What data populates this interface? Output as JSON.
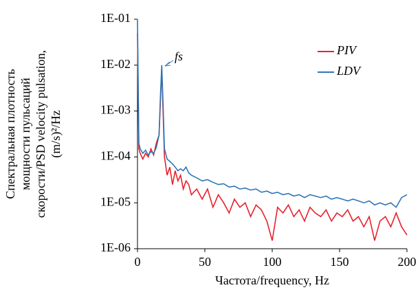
{
  "chart_data": {
    "type": "line",
    "x_label": "Частота/frequency, Hz",
    "y_label": [
      "Спектральная плотность",
      "мощности пульсаций",
      "скорости/PSD velocity pulsation,",
      "(m/s)²/Hz"
    ],
    "annotation": "fs",
    "log_y": true,
    "grid": false,
    "legend": "upper right",
    "xlim": [
      0,
      200
    ],
    "xticks": [
      0,
      50,
      100,
      150,
      200
    ],
    "ylim": [
      1e-06,
      0.1
    ],
    "yticks": [
      {
        "value": 1e-06,
        "label": "1E-06"
      },
      {
        "value": 1e-05,
        "label": "1E-05"
      },
      {
        "value": 0.0001,
        "label": "1E-04"
      },
      {
        "value": 0.001,
        "label": "1E-03"
      },
      {
        "value": 0.01,
        "label": "1E-02"
      },
      {
        "value": 0.1,
        "label": "1E-01"
      }
    ],
    "x": [
      0,
      1,
      2,
      4,
      6,
      8,
      10,
      12,
      14,
      16,
      17,
      18,
      19,
      20,
      22,
      24,
      26,
      28,
      30,
      32,
      34,
      36,
      38,
      40,
      44,
      48,
      52,
      56,
      60,
      64,
      68,
      72,
      76,
      80,
      84,
      88,
      92,
      96,
      100,
      104,
      108,
      112,
      116,
      120,
      124,
      128,
      132,
      136,
      140,
      144,
      148,
      152,
      156,
      160,
      164,
      168,
      172,
      176,
      180,
      184,
      188,
      192,
      196,
      200
    ],
    "series": [
      {
        "name": "PIV",
        "color": "#e8202a",
        "values": [
          0.05,
          0.00015,
          0.00012,
          9e-05,
          0.00012,
          0.0001,
          0.00015,
          0.00011,
          0.0002,
          0.0003,
          0.0015,
          0.008,
          0.001,
          0.0001,
          4e-05,
          6e-05,
          2.5e-05,
          5e-05,
          3e-05,
          4e-05,
          2e-05,
          3e-05,
          2.5e-05,
          1.5e-05,
          2e-05,
          1.2e-05,
          2e-05,
          8e-06,
          1.5e-05,
          1e-05,
          6e-06,
          1.2e-05,
          8e-06,
          1e-05,
          5e-06,
          9e-06,
          7e-06,
          4e-06,
          1.5e-06,
          8e-06,
          6e-06,
          9e-06,
          5e-06,
          7e-06,
          4e-06,
          8e-06,
          6e-06,
          5e-06,
          7e-06,
          4e-06,
          6e-06,
          5e-06,
          7e-06,
          4e-06,
          5e-06,
          3e-06,
          5e-06,
          1.5e-06,
          4e-06,
          5e-06,
          3e-06,
          6e-06,
          3e-06,
          2e-06
        ]
      },
      {
        "name": "LDV",
        "color": "#2e75b6",
        "values": [
          0.1,
          0.0002,
          0.00015,
          0.00012,
          0.00014,
          0.00011,
          0.00013,
          0.00012,
          0.00016,
          0.0003,
          0.002,
          0.01,
          0.0015,
          0.00015,
          9e-05,
          8e-05,
          7e-05,
          6e-05,
          5e-05,
          5.5e-05,
          5e-05,
          6e-05,
          4.5e-05,
          4e-05,
          3.5e-05,
          3e-05,
          3.2e-05,
          2.8e-05,
          2.5e-05,
          2.6e-05,
          2.2e-05,
          2.3e-05,
          2e-05,
          2.1e-05,
          1.9e-05,
          2e-05,
          1.7e-05,
          1.8e-05,
          1.6e-05,
          1.7e-05,
          1.5e-05,
          1.6e-05,
          1.4e-05,
          1.5e-05,
          1.3e-05,
          1.5e-05,
          1.4e-05,
          1.3e-05,
          1.4e-05,
          1.2e-05,
          1.3e-05,
          1.2e-05,
          1.1e-05,
          1.2e-05,
          1.1e-05,
          1e-05,
          1.1e-05,
          9e-06,
          1e-05,
          9e-06,
          1e-05,
          8e-06,
          1.3e-05,
          1.5e-05
        ]
      }
    ]
  }
}
